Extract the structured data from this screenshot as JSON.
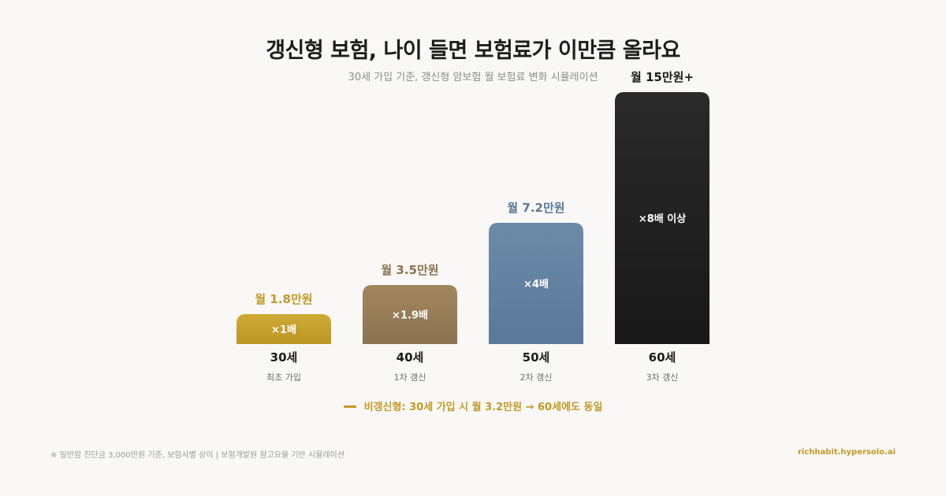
{
  "header": {
    "title": "갱신형 보험, 나이 들면 보험료가 이만큼 올라요",
    "subtitle": "30세 가입 기준, 갱신형 암보험 월 보험료 변화 시뮬레이션"
  },
  "chart_data": {
    "type": "bar",
    "categories": [
      "30세",
      "40세",
      "50세",
      "60세"
    ],
    "sublabels": [
      "최초 가입",
      "1차 갱신",
      "2차 갱신",
      "3차 갱신"
    ],
    "values": [
      1.8,
      3.5,
      7.2,
      15
    ],
    "value_unit": "만원/월",
    "value_labels": [
      "월 1.8만원",
      "월 3.5만원",
      "월 7.2만원",
      "월 15만원+"
    ],
    "multipliers": [
      "×1배",
      "×1.9배",
      "×4배",
      "×8배 이상"
    ],
    "colors": {
      "bar_top": [
        "#cfaa35",
        "#a3865e",
        "#6c8aa8",
        "#2a2a2a"
      ],
      "bar_bottom": [
        "#bb9626",
        "#8a7251",
        "#5a7999",
        "#181818"
      ],
      "value_label": [
        "#c29a28",
        "#8c7150",
        "#5a7898",
        "#1a1a1a"
      ]
    },
    "ylim": [
      0,
      15
    ],
    "grid": false,
    "legend": "bottom-center"
  },
  "legend": {
    "text": "비갱신형: 30세 가입 시 월 3.2만원 → 60세에도 동일",
    "color": "#c29a28"
  },
  "footer": {
    "note": "※ 일반암 진단금 3,000만원 기준, 보험사별 상이 | 보험개발원 참고요율 기반 시뮬레이션",
    "site": "richhabit.hypersolo.ai",
    "site_color": "#c29a28"
  }
}
